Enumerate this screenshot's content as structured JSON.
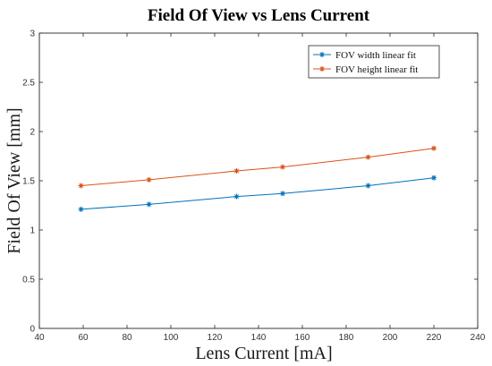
{
  "chart_data": {
    "type": "line",
    "title": "Field Of View vs Lens Current",
    "xlabel": "Lens Current [mA]",
    "ylabel": "Field Of View [mm]",
    "xlim": [
      40,
      240
    ],
    "ylim": [
      0,
      3
    ],
    "xticks": [
      "40",
      "60",
      "80",
      "100",
      "120",
      "140",
      "160",
      "180",
      "200",
      "220",
      "240"
    ],
    "yticks": [
      "0",
      "0.5",
      "1",
      "1.5",
      "2",
      "2.5",
      "3"
    ],
    "x": [
      59,
      90,
      130,
      151,
      190,
      220
    ],
    "series": [
      {
        "name": "FOV width linear fit",
        "color": "#0072BD",
        "marker": "asterisk",
        "values": [
          1.21,
          1.26,
          1.34,
          1.37,
          1.45,
          1.53
        ]
      },
      {
        "name": "FOV height linear fit",
        "color": "#D95319",
        "marker": "asterisk",
        "values": [
          1.45,
          1.51,
          1.6,
          1.64,
          1.74,
          1.83
        ]
      }
    ],
    "grid": false,
    "legend_position": "top-right"
  }
}
